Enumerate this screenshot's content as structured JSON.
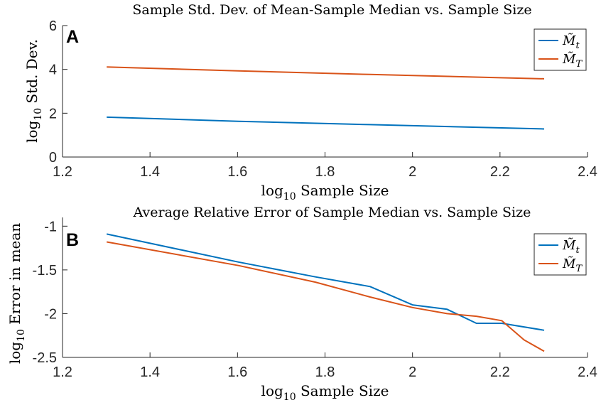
{
  "chart_data": [
    {
      "type": "line",
      "panel_letter": "A",
      "title": "Sample Std. Dev. of Mean-Sample Median vs. Sample Size",
      "xlabel": "log10 Sample Size",
      "ylabel": "log10 Std. Dev.",
      "xlim": [
        1.2,
        2.4
      ],
      "ylim": [
        0,
        6
      ],
      "xticks": [
        "1.2",
        "1.4",
        "1.6",
        "1.8",
        "2",
        "2.2",
        "2.4"
      ],
      "yticks": [
        "0",
        "2",
        "4",
        "6"
      ],
      "legend_position": "top-right",
      "series": [
        {
          "name": "M̃_t",
          "color": "#0072BD",
          "x": [
            1.301,
            1.602,
            1.903,
            2.301
          ],
          "y": [
            1.82,
            1.63,
            1.48,
            1.28
          ]
        },
        {
          "name": "M̃_T",
          "color": "#D95319",
          "x": [
            1.301,
            1.602,
            1.903,
            2.301
          ],
          "y": [
            4.11,
            3.93,
            3.77,
            3.57
          ]
        }
      ]
    },
    {
      "type": "line",
      "panel_letter": "B",
      "title": "Average Relative Error of Sample Median vs. Sample Size",
      "xlabel": "log10 Sample Size",
      "ylabel": "log10 Error in mean",
      "xlim": [
        1.2,
        2.4
      ],
      "ylim": [
        -2.5,
        -0.9
      ],
      "xticks": [
        "1.2",
        "1.4",
        "1.6",
        "1.8",
        "2",
        "2.2",
        "2.4"
      ],
      "yticks": [
        "-2.5",
        "-2",
        "-1.5",
        "-1"
      ],
      "legend_position": "top-right",
      "series": [
        {
          "name": "M̃_t",
          "color": "#0072BD",
          "x": [
            1.301,
            1.602,
            1.778,
            1.903,
            2.0,
            2.079,
            2.146,
            2.204,
            2.301
          ],
          "y": [
            -1.09,
            -1.41,
            -1.58,
            -1.69,
            -1.9,
            -1.95,
            -2.11,
            -2.11,
            -2.19
          ]
        },
        {
          "name": "M̃_T",
          "color": "#D95319",
          "x": [
            1.301,
            1.602,
            1.778,
            1.903,
            2.0,
            2.079,
            2.146,
            2.204,
            2.255,
            2.301
          ],
          "y": [
            -1.18,
            -1.45,
            -1.64,
            -1.81,
            -1.93,
            -2.0,
            -2.03,
            -2.08,
            -2.3,
            -2.43
          ]
        }
      ]
    }
  ]
}
